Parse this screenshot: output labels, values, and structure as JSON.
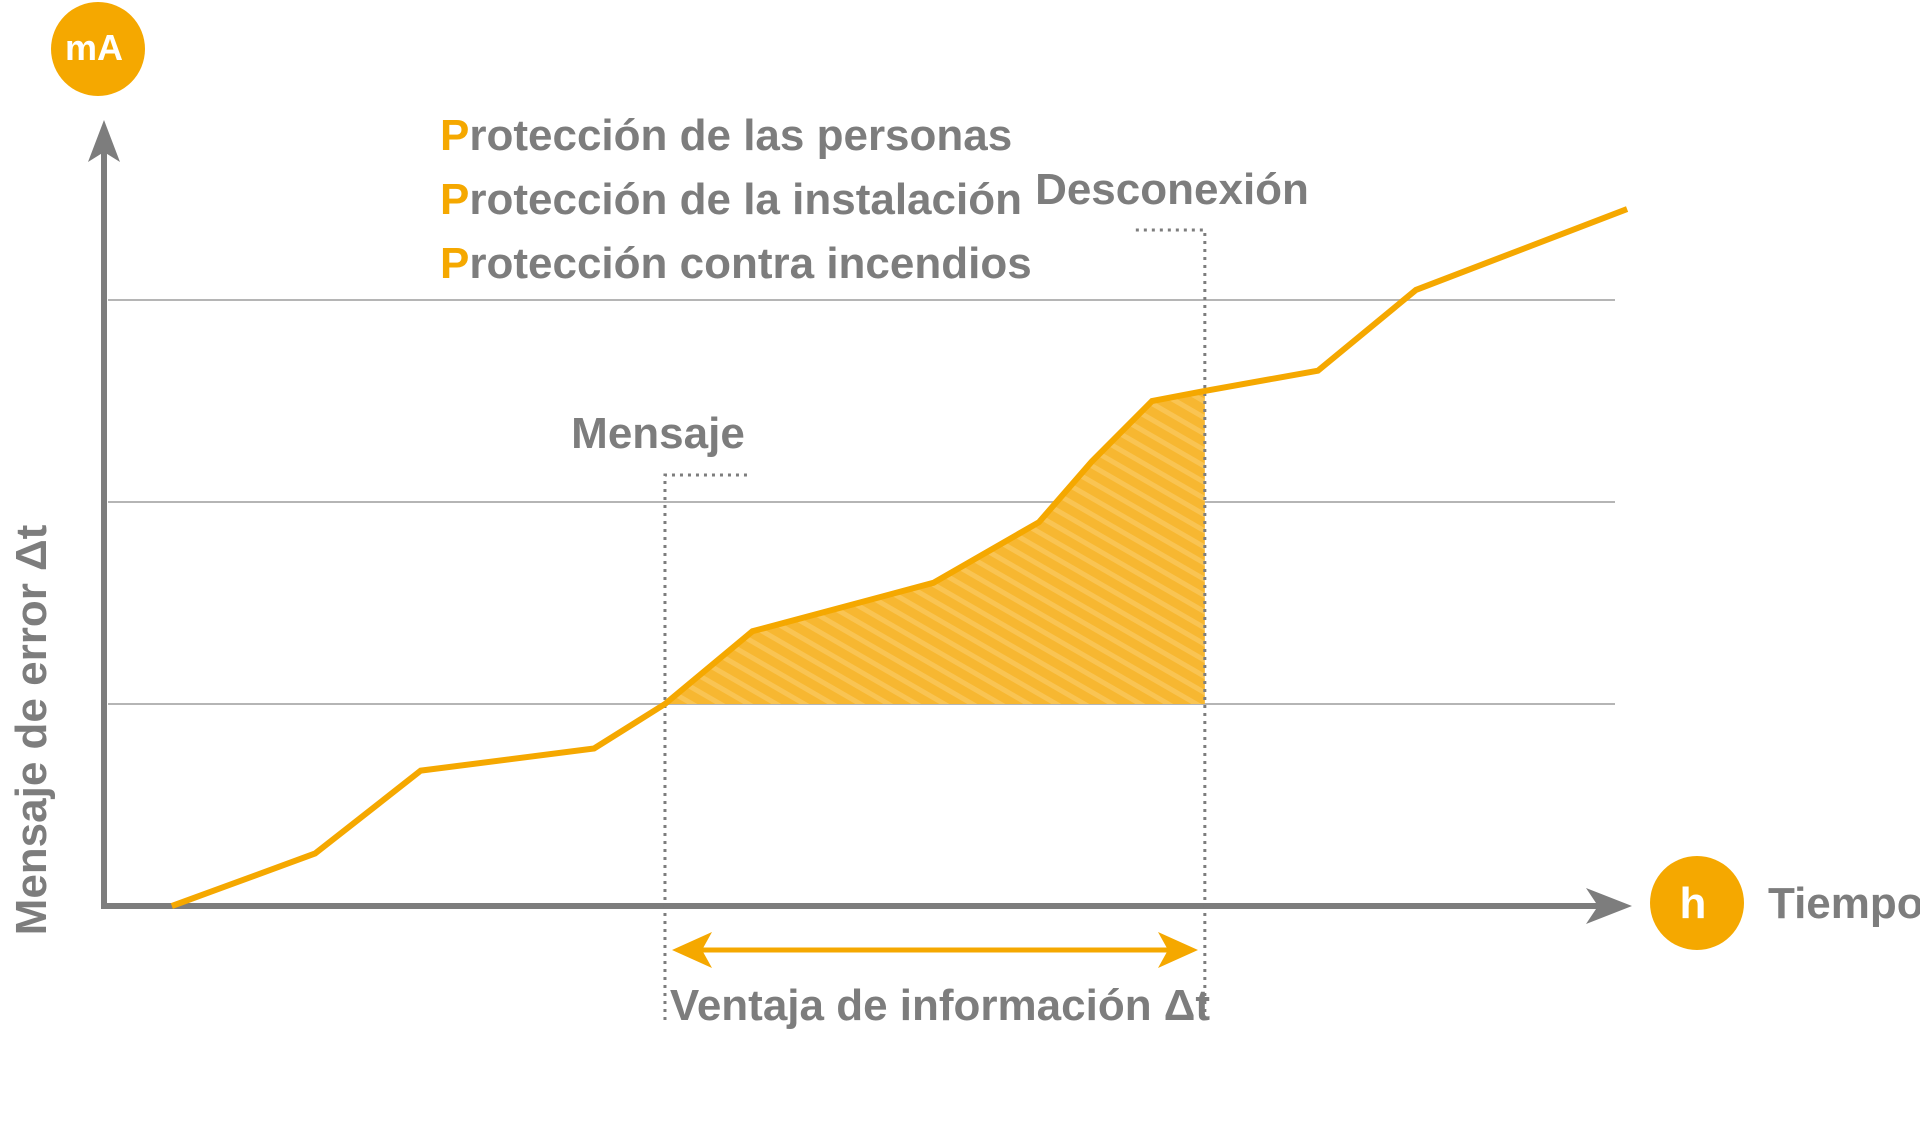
{
  "chart_data": {
    "type": "line",
    "y_unit_badge": "mA",
    "x_unit_badge": "h",
    "xlabel": "Tiempo",
    "ylabel": "Mensaje de error Δt",
    "legend_items": [
      {
        "initial": "P",
        "rest": "rotección de las personas"
      },
      {
        "initial": "P",
        "rest": "rotección de la instalación"
      },
      {
        "initial": "P",
        "rest": "rotección contra incendios"
      }
    ],
    "thresholds": [
      {
        "level": 1,
        "label": ""
      },
      {
        "level": 2,
        "label": ""
      },
      {
        "level": 3,
        "label": ""
      }
    ],
    "ylim": [
      0,
      4
    ],
    "xlim": [
      0,
      10
    ],
    "series": [
      {
        "x": [
          0.45,
          1.4,
          2.1,
          3.25,
          3.72,
          4.3,
          5.5,
          6.2,
          6.55,
          6.95,
          7.3,
          8.05,
          8.7,
          10.1
        ],
        "y": [
          0.0,
          0.26,
          0.67,
          0.78,
          1.0,
          1.36,
          1.6,
          1.9,
          2.2,
          2.5,
          2.55,
          2.65,
          3.05,
          3.45
        ]
      }
    ],
    "annotations": {
      "message": {
        "label": "Mensaje",
        "x": 3.72,
        "y": 1.0
      },
      "disconnect": {
        "label": "Desconexión",
        "x": 7.3,
        "y": 2.55
      },
      "interval_label": "Ventaja de información Δt"
    },
    "colors": {
      "accent": "#f5a800",
      "axis": "#7d7d7d",
      "grid": "#b5b5b5",
      "fill": "#f7b731"
    }
  }
}
